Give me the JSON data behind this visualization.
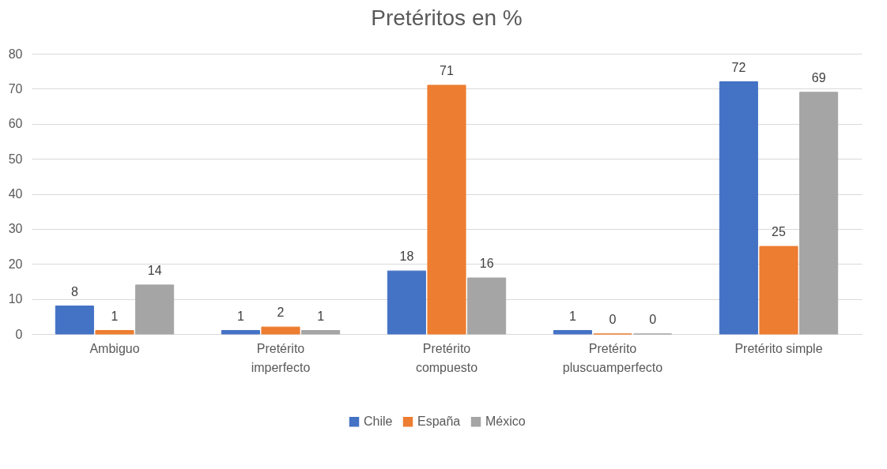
{
  "chart_data": {
    "type": "bar",
    "title": "Pretéritos en %",
    "categories": [
      "Ambiguo",
      "Pretérito imperfecto",
      "Pretérito compuesto",
      "Pretérito pluscuamperfecto",
      "Pretérito simple"
    ],
    "series": [
      {
        "name": "Chile",
        "color": "#4472c4",
        "values": [
          8,
          1,
          18,
          1,
          72
        ]
      },
      {
        "name": "España",
        "color": "#ed7d31",
        "values": [
          1,
          2,
          71,
          0,
          25
        ]
      },
      {
        "name": "México",
        "color": "#a5a5a5",
        "values": [
          14,
          1,
          16,
          0,
          69
        ]
      }
    ],
    "ylim": [
      0,
      80
    ],
    "yticks": [
      0,
      10,
      20,
      30,
      40,
      50,
      60,
      70,
      80
    ],
    "grid": "y",
    "legend": "bottom",
    "data_labels": true
  }
}
